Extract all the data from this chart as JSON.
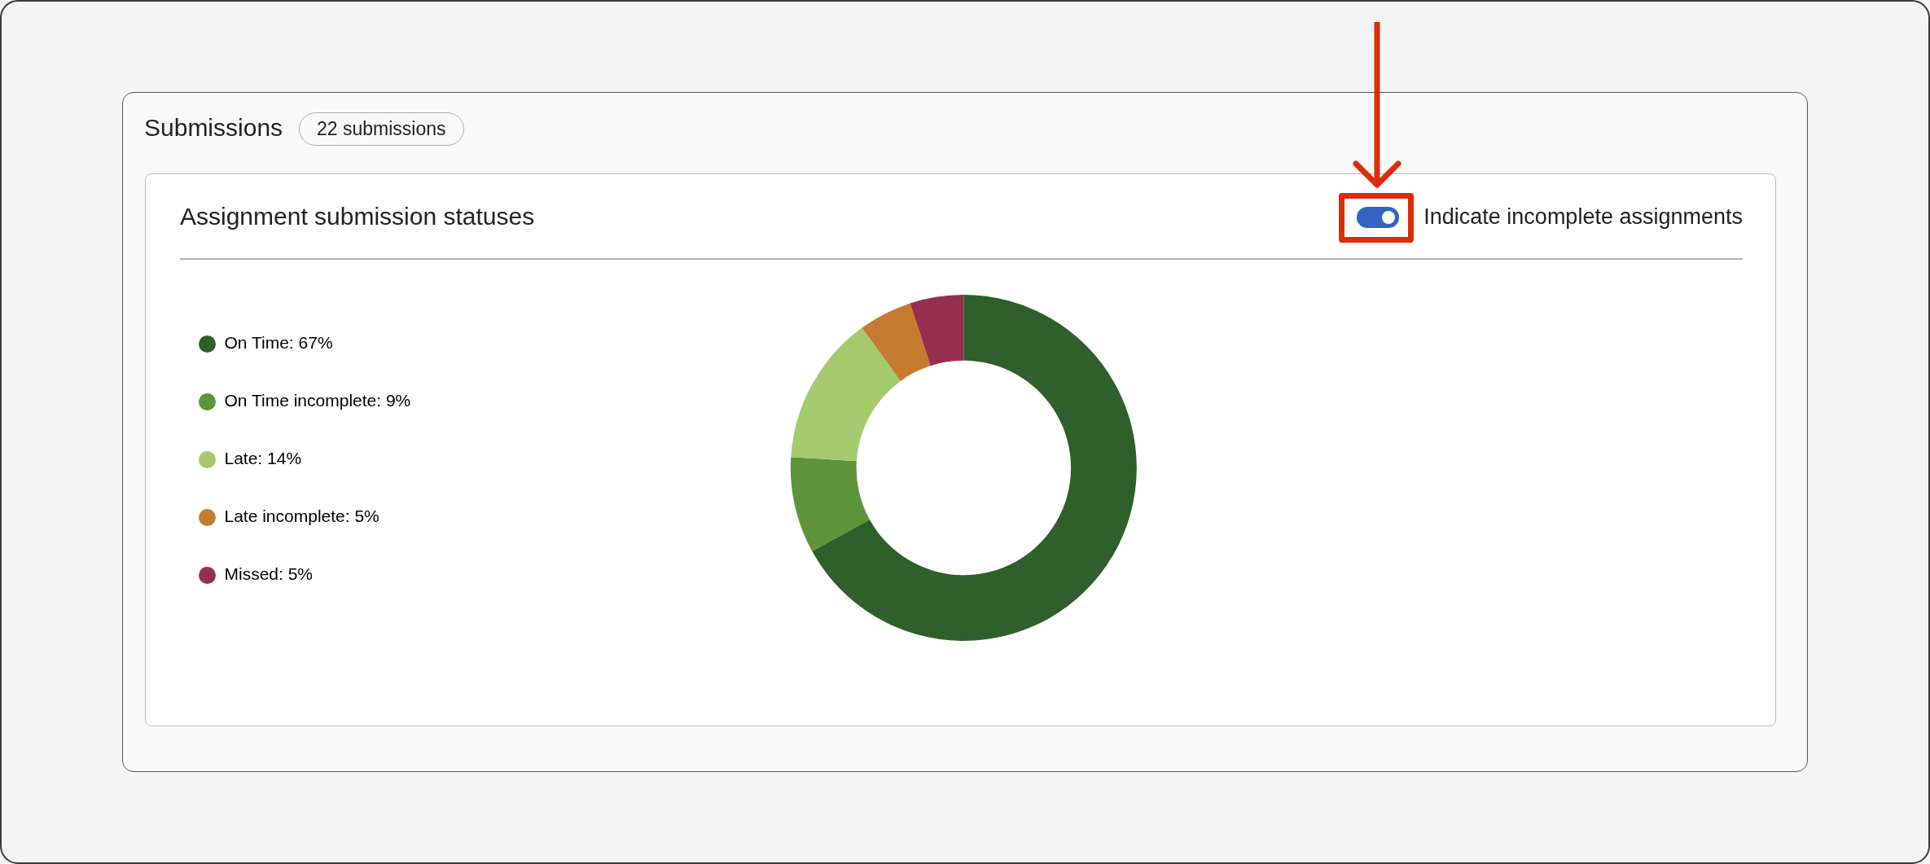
{
  "chart_data": {
    "type": "donut",
    "title": "Assignment submission statuses",
    "categories": [
      "On Time",
      "On Time incomplete",
      "Late",
      "Late incomplete",
      "Missed"
    ],
    "values": [
      67,
      9,
      14,
      5,
      5
    ],
    "value_labels": [
      "67%",
      "9%",
      "14%",
      "5%",
      "5%"
    ],
    "colors": [
      "#2f5f2a",
      "#5e9439",
      "#a3cb6e",
      "#c77b30",
      "#962f4f"
    ],
    "legend": "left",
    "annotations": [
      "Submissions",
      "22 submissions",
      "Indicate incomplete assignments"
    ]
  }
}
